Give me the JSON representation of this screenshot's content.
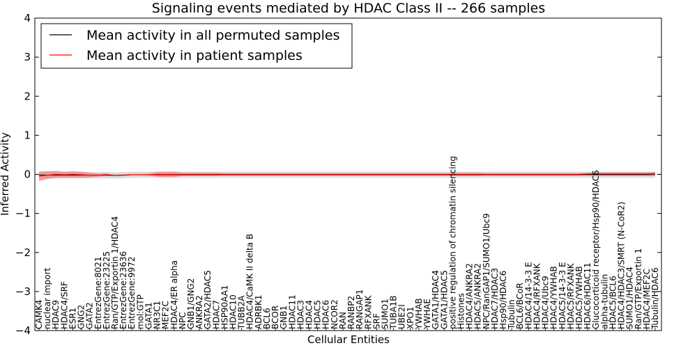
{
  "chart_data": {
    "type": "line",
    "title": "Signaling events mediated by HDAC Class II -- 266 samples",
    "xlabel": "Cellular Entities",
    "ylabel": "Inferred Activity",
    "ylim": [
      -4,
      4
    ],
    "yticks": [
      "4",
      "3",
      "2",
      "1",
      "0",
      "−1",
      "−2",
      "−3",
      "−4"
    ],
    "ytick_values": [
      4,
      3,
      2,
      1,
      0,
      -1,
      -2,
      -3,
      -4
    ],
    "legend": {
      "placement": "top-left",
      "entries": [
        {
          "label": "Mean activity in all permuted samples",
          "color": "#000000"
        },
        {
          "label": "Mean activity in patient samples",
          "color": "#ff0000"
        }
      ]
    },
    "colors": {
      "permuted_line": "#000000",
      "permuted_band": "#bfbfbf",
      "patient_line": "#ff0000",
      "patient_band": "#f08080"
    },
    "categories": [
      "CAMK4",
      "nuclear import",
      "HDAC9",
      "HDAC4/SRF",
      "ESR1",
      "GNG2",
      "GATA2",
      "EntrezGene:8021",
      "EntrezGene:23225",
      "Ran/GTP/Exportin 1/HDAC4",
      "EntrezGene:23636",
      "EntrezGene:9972",
      "mol:GTP",
      "GATA1",
      "NR3C1",
      "MEF2C",
      "HDAC4/ER alpha",
      "NPC",
      "GNB1/GNG2",
      "ANKRA2",
      "GATA2/HDAC5",
      "HDAC7",
      "HSP90AA1",
      "HDAC10",
      "TUBB2A",
      "HDAC4/CaMK II delta B",
      "ADRBK1",
      "BCL6",
      "BCOR",
      "GNB1",
      "HDAC11",
      "HDAC3",
      "HDAC4",
      "HDAC5",
      "HDAC6",
      "NCOR2",
      "RAN",
      "RANBP2",
      "RANGAP1",
      "RFXANK",
      "SRF",
      "SUMO1",
      "TUBA1B",
      "UBE2I",
      "XPO1",
      "YWHAB",
      "YWHAE",
      "GATA1/HDAC4",
      "GATA1/HDAC5",
      "positive regulation of chromatin silencing",
      "Histones",
      "HDAC4/ANKRA2",
      "HDAC5/ANKRA2",
      "NPC/RanGAP1/SUMO1/Ubc9",
      "HDAC7/HDAC3",
      "Hsp90/HDAC6",
      "Tubulin",
      "BCL6/BCoR",
      "HDAC4/14-3-3 E",
      "HDAC4/RFXANK",
      "HDAC4/Ubc9",
      "HDAC4/YWHAB",
      "HDAC5/14-3-3 E",
      "HDAC5/RFXANK",
      "HDAC5/YWHAB",
      "HDAC6/HDAC11",
      "Glucocorticoid receptor/Hsp90/HDAC6",
      "alpha-tubulin",
      "HDAC5/BCL6",
      "HDAC4/HDAC3/SMRT (N-CoR2)",
      "SUMO1/HDAC4",
      "Ran/GTP/Exportin 1",
      "HDAC4/MEF2C",
      "Tubulin/HDAC6"
    ],
    "series": [
      {
        "name": "Mean activity in all permuted samples",
        "values": [
          -0.02,
          -0.02,
          -0.02,
          -0.02,
          -0.02,
          -0.02,
          -0.02,
          -0.02,
          -0.02,
          -0.03,
          -0.02,
          -0.01,
          -0.01,
          -0.01,
          -0.01,
          -0.01,
          -0.01,
          -0.01,
          -0.01,
          -0.01,
          -0.01,
          -0.01,
          -0.01,
          -0.01,
          -0.01,
          -0.01,
          -0.01,
          -0.01,
          -0.01,
          -0.01,
          -0.01,
          -0.01,
          -0.01,
          -0.01,
          -0.01,
          -0.01,
          -0.01,
          -0.01,
          -0.01,
          -0.01,
          -0.01,
          -0.01,
          -0.01,
          -0.01,
          -0.01,
          -0.01,
          -0.01,
          -0.01,
          -0.01,
          -0.01,
          -0.01,
          -0.01,
          -0.01,
          -0.01,
          -0.01,
          -0.01,
          -0.01,
          -0.01,
          -0.01,
          -0.01,
          -0.01,
          -0.01,
          -0.01,
          -0.01,
          -0.01,
          -0.01,
          -0.01,
          -0.01,
          -0.01,
          -0.01,
          -0.01,
          -0.01,
          -0.01,
          -0.01
        ],
        "band": 0.08
      },
      {
        "name": "Mean activity in patient samples",
        "values": [
          -0.05,
          -0.02,
          0.0,
          -0.01,
          0.0,
          -0.01,
          -0.02,
          -0.02,
          -0.01,
          -0.03,
          -0.02,
          -0.01,
          -0.01,
          -0.01,
          0.0,
          0.0,
          0.0,
          0.0,
          0.0,
          0.0,
          0.0,
          0.0,
          0.0,
          0.0,
          0.0,
          0.0,
          0.0,
          0.0,
          0.0,
          0.0,
          0.0,
          0.0,
          0.0,
          0.0,
          0.0,
          0.0,
          0.0,
          0.0,
          0.0,
          0.0,
          0.0,
          0.0,
          0.0,
          0.0,
          0.0,
          0.0,
          0.0,
          0.0,
          0.0,
          0.0,
          0.0,
          0.0,
          0.0,
          0.0,
          0.0,
          0.0,
          0.0,
          0.0,
          0.0,
          0.0,
          0.0,
          0.0,
          0.0,
          0.0,
          0.0,
          0.01,
          0.01,
          0.01,
          0.01,
          0.01,
          0.01,
          0.01,
          0.01,
          0.02
        ],
        "band": [
          0.12,
          0.1,
          0.09,
          0.08,
          0.08,
          0.08,
          0.06,
          0.04,
          0.03,
          0.02,
          0.02,
          0.02,
          0.02,
          0.03,
          0.06,
          0.07,
          0.07,
          0.04,
          0.04,
          0.04,
          0.04,
          0.04,
          0.03,
          0.03,
          0.03,
          0.03,
          0.03,
          0.03,
          0.03,
          0.03,
          0.03,
          0.03,
          0.03,
          0.03,
          0.03,
          0.03,
          0.03,
          0.03,
          0.03,
          0.03,
          0.03,
          0.03,
          0.03,
          0.03,
          0.03,
          0.03,
          0.03,
          0.03,
          0.03,
          0.04,
          0.04,
          0.04,
          0.04,
          0.03,
          0.03,
          0.03,
          0.03,
          0.03,
          0.03,
          0.03,
          0.03,
          0.03,
          0.03,
          0.03,
          0.03,
          0.03,
          0.04,
          0.04,
          0.04,
          0.04,
          0.04,
          0.04,
          0.04,
          0.04
        ]
      }
    ]
  }
}
